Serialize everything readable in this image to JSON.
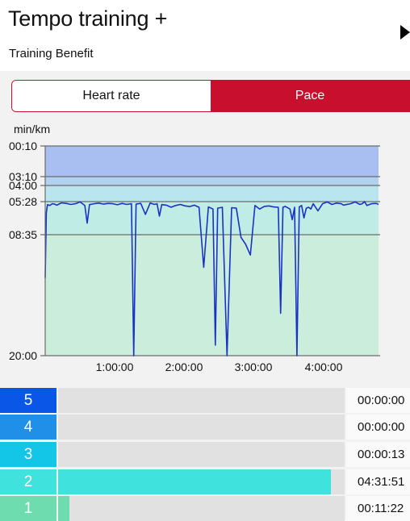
{
  "header": {
    "title": "Tempo training +",
    "subtitle": "Training Benefit",
    "play_icon": "play-icon"
  },
  "toggle": {
    "heart_rate_label": "Heart rate",
    "pace_label": "Pace",
    "active": "pace",
    "accent": "#c8102e"
  },
  "chart_data": {
    "type": "line",
    "ylabel": "min/km",
    "y_ticks": [
      "00:10",
      "03:10",
      "04:00",
      "05:28",
      "08:35",
      "20:00"
    ],
    "x_ticks": [
      "1:00:00",
      "2:00:00",
      "3:00:00",
      "4:00:00"
    ],
    "x_unit": "minutes",
    "xlim": [
      0,
      286
    ],
    "zones": [
      {
        "from": "00:10",
        "to": "03:10",
        "color": "#a9bff2"
      },
      {
        "from": "03:10",
        "to": "04:00",
        "color": "#b1d1ef"
      },
      {
        "from": "04:00",
        "to": "05:28",
        "color": "#b9e6ee"
      },
      {
        "from": "05:28",
        "to": "08:35",
        "color": "#c0ece6"
      },
      {
        "from": "08:35",
        "to": "20:00",
        "color": "#cbeedc"
      }
    ],
    "line_color": "#1a33c4",
    "series": [
      {
        "x": [
          0,
          1,
          2,
          4,
          6,
          8,
          10,
          14,
          18,
          22,
          26,
          30,
          34,
          36,
          38,
          42,
          46,
          50,
          54,
          58,
          62,
          66,
          70,
          74,
          76,
          78,
          82,
          86,
          90,
          94,
          96,
          98,
          100,
          104,
          108,
          112,
          116,
          120,
          124,
          128,
          132,
          136,
          140,
          144,
          146,
          148,
          152,
          156,
          160,
          164,
          168,
          172,
          176,
          180,
          184,
          188,
          192,
          196,
          200,
          202,
          204,
          206,
          210,
          212,
          214,
          216,
          218,
          220,
          222,
          224,
          226,
          228,
          230,
          234,
          238,
          242,
          246,
          250,
          254,
          256,
          258,
          262,
          266,
          270,
          272,
          274,
          276,
          280,
          284,
          286
        ],
        "y": [
          "12:40",
          "06:30",
          "05:45",
          "05:50",
          "05:40",
          "05:42",
          "05:48",
          "05:35",
          "05:38",
          "05:44",
          "05:40",
          "05:30",
          "05:50",
          "07:30",
          "05:45",
          "05:40",
          "05:36",
          "05:42",
          "05:38",
          "05:40",
          "05:46",
          "05:38",
          "05:44",
          "05:40",
          "20:00",
          "05:42",
          "05:38",
          "06:40",
          "05:36",
          "05:44",
          "05:40",
          "06:50",
          "05:45",
          "05:48",
          "06:00",
          "05:50",
          "05:44",
          "05:52",
          "05:56",
          "05:48",
          "06:00",
          "11:40",
          "05:58",
          "06:10",
          "19:00",
          "06:05",
          "06:00",
          "20:00",
          "06:02",
          "06:05",
          "08:50",
          "09:30",
          "10:30",
          "05:50",
          "06:10",
          "05:55",
          "05:52",
          "05:58",
          "06:00",
          "16:00",
          "06:00",
          "05:55",
          "06:10",
          "07:10",
          "06:00",
          "20:00",
          "05:58",
          "05:50",
          "07:00",
          "06:05",
          "06:00",
          "06:10",
          "05:40",
          "06:20",
          "05:40",
          "05:30",
          "05:44",
          "05:36",
          "05:40",
          "05:48",
          "05:45",
          "05:40",
          "05:30",
          "05:44",
          "05:40",
          "05:28",
          "05:50",
          "05:40",
          "05:38",
          "05:44"
        ]
      }
    ]
  },
  "zones_table": [
    {
      "zone": "5",
      "time": "00:00:00",
      "fraction": 0.0,
      "color": "#0a56e6"
    },
    {
      "zone": "4",
      "time": "00:00:00",
      "fraction": 0.0,
      "color": "#1f8fe8"
    },
    {
      "zone": "3",
      "time": "00:00:13",
      "fraction": 0.0,
      "color": "#13c6e8"
    },
    {
      "zone": "2",
      "time": "04:31:51",
      "fraction": 0.953,
      "color": "#3fe2dc"
    },
    {
      "zone": "1",
      "time": "00:11:22",
      "fraction": 0.04,
      "color": "#6fdcb0"
    }
  ]
}
